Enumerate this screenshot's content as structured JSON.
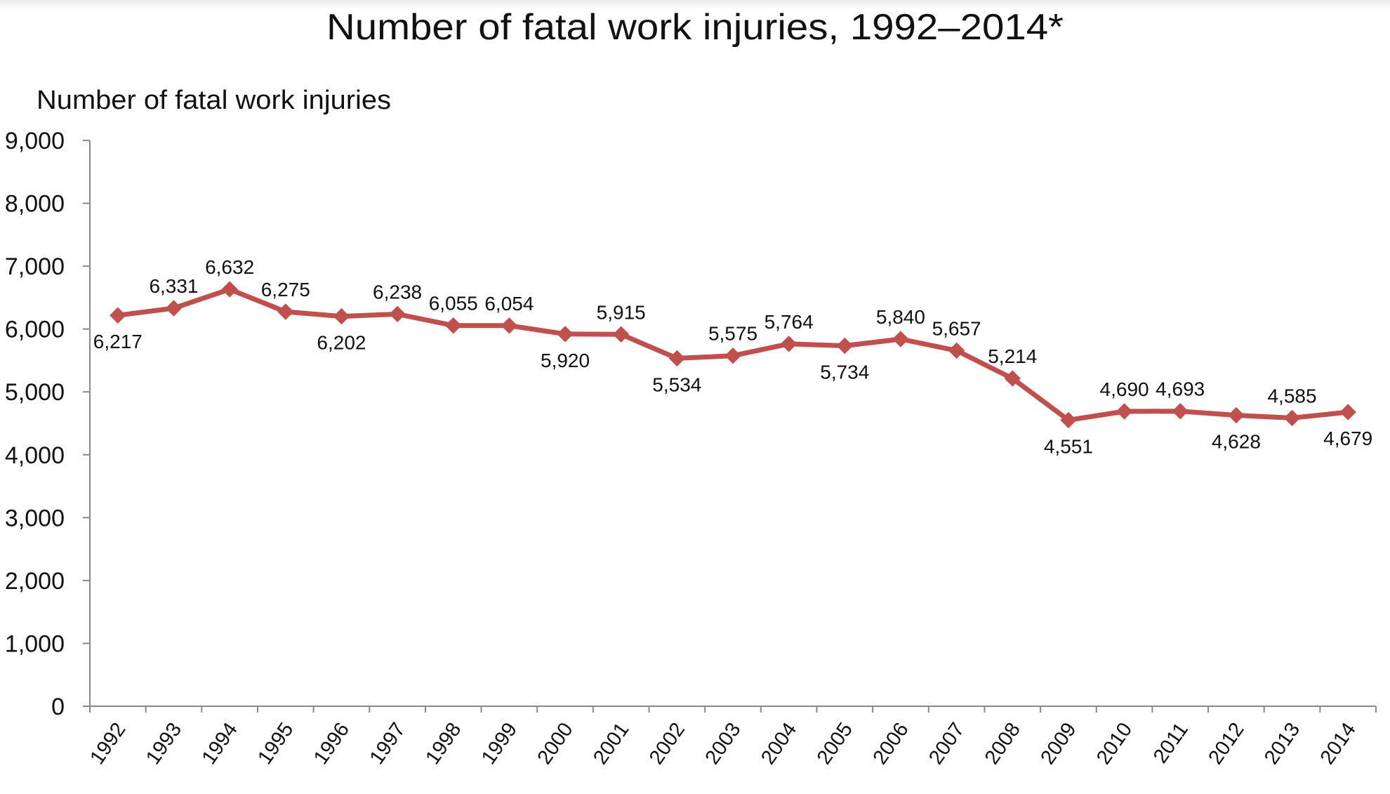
{
  "chart_data": {
    "type": "line",
    "title": "Number of fatal work injuries, 1992–2014*",
    "ylabel": "Number of fatal work injuries",
    "xlabel": "",
    "ylim": [
      0,
      9000
    ],
    "yticks": [
      "0",
      "1,000",
      "2,000",
      "3,000",
      "4,000",
      "5,000",
      "6,000",
      "7,000",
      "8,000",
      "9,000"
    ],
    "grid": false,
    "legend": "none",
    "categories": [
      "1992",
      "1993",
      "1994",
      "1995",
      "1996",
      "1997",
      "1998",
      "1999",
      "2000",
      "2001",
      "2002",
      "2003",
      "2004",
      "2005",
      "2006",
      "2007",
      "2008",
      "2009",
      "2010",
      "2011",
      "2012",
      "2013",
      "2014"
    ],
    "series": [
      {
        "values": [
          6217,
          6331,
          6632,
          6275,
          6202,
          6238,
          6055,
          6054,
          5920,
          5915,
          5534,
          5575,
          5764,
          5734,
          5840,
          5657,
          5214,
          4551,
          4690,
          4693,
          4628,
          4585,
          4679
        ],
        "labels": [
          "6,217",
          "6,331",
          "6,632",
          "6,275",
          "6,202",
          "6,238",
          "6,055",
          "6,054",
          "5,920",
          "5,915",
          "5,534",
          "5,575",
          "5,764",
          "5,734",
          "5,840",
          "5,657",
          "5,214",
          "4,551",
          "4,690",
          "4,693",
          "4,628",
          "4,585",
          "4,679"
        ],
        "label_positions": [
          "below",
          "above",
          "above",
          "above",
          "below",
          "above",
          "above",
          "above",
          "below",
          "above",
          "below",
          "above",
          "above",
          "below",
          "above",
          "above",
          "above",
          "below",
          "above",
          "above",
          "below",
          "above",
          "below"
        ],
        "color": "#c0504d"
      }
    ]
  }
}
